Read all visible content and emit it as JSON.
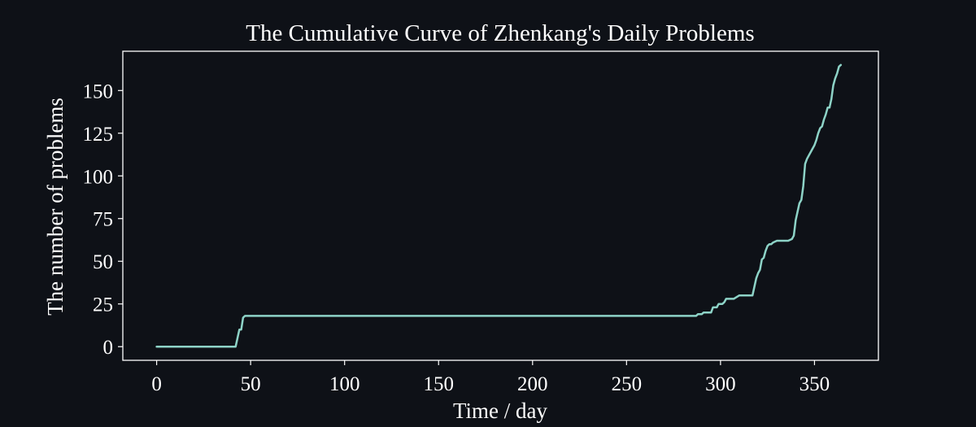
{
  "colors": {
    "background": "#0e1117",
    "axes": "#ffffff",
    "line": "#8dd3c7",
    "text": "#ffffff"
  },
  "chart_data": {
    "type": "line",
    "title": "The Cumulative Curve of Zhenkang's Daily Problems",
    "xlabel": "Time / day",
    "ylabel": "The number of problems",
    "xlim": [
      -18,
      384
    ],
    "ylim": [
      -8,
      173
    ],
    "xticks": [
      0,
      50,
      100,
      150,
      200,
      250,
      300,
      350
    ],
    "yticks": [
      0,
      25,
      50,
      75,
      100,
      125,
      150
    ],
    "grid": false,
    "legend": "none",
    "series": [
      {
        "x": [
          0,
          42,
          43,
          44,
          45,
          46,
          47,
          100,
          150,
          200,
          250,
          287,
          288,
          290,
          291,
          292,
          295,
          296,
          298,
          299,
          301,
          302,
          303,
          304,
          305,
          306,
          307,
          310,
          311,
          312,
          313,
          317,
          318,
          319,
          320,
          321,
          322,
          323,
          324,
          325,
          326,
          327,
          328,
          330,
          332,
          334,
          336,
          338,
          339,
          340,
          341,
          342,
          343,
          344,
          345,
          346,
          348,
          350,
          351,
          352,
          353,
          354,
          355,
          356,
          357,
          358,
          359,
          360,
          361,
          362,
          363,
          364
        ],
        "y": [
          0,
          0,
          5,
          10,
          10,
          17,
          18,
          18,
          18,
          18,
          18,
          18,
          19,
          19,
          20,
          20,
          20,
          23,
          23,
          25,
          25,
          26,
          28,
          28,
          28,
          28,
          28,
          30,
          30,
          30,
          30,
          30,
          35,
          40,
          43,
          45,
          51,
          52,
          56,
          59,
          60,
          60,
          61,
          62,
          62,
          62,
          62,
          63,
          65,
          74,
          79,
          84,
          86,
          94,
          107,
          110,
          114,
          118,
          121,
          125,
          128,
          129,
          133,
          136,
          140,
          140,
          145,
          153,
          157,
          160,
          164,
          165
        ]
      }
    ]
  }
}
